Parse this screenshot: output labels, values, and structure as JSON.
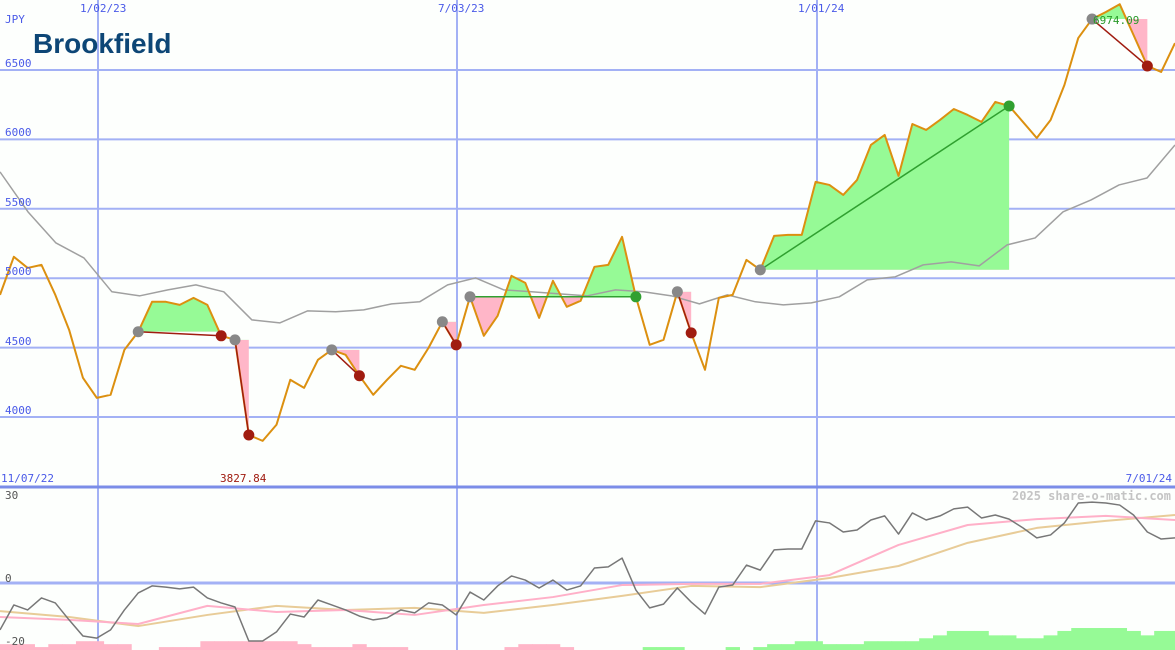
{
  "logo_text": "Brookfield",
  "currency_label": "JPY",
  "copyright": "2025 share-o-matic.com",
  "colors": {
    "grid": "#a3b1f5",
    "axis_text": "#4a5ae8",
    "price": "#dc9010",
    "avg": "#a0a0a0",
    "gain_fill": "#96fa96",
    "loss_fill": "#ffb6c8",
    "loss_marker": "#a01c10",
    "gain_marker": "#30a030",
    "entry_marker": "#888888",
    "osc": "#777777",
    "osc_fast": "#ffb0c8",
    "osc_slow": "#e8cc98"
  },
  "chart_data": [
    {
      "type": "line",
      "title": "",
      "ylabel": "JPY",
      "ylim": [
        3600,
        7000
      ],
      "yticks": [
        "6500",
        "6000",
        "5500",
        "5000",
        "4500",
        "4000"
      ],
      "ytick_values": [
        6500,
        6000,
        5500,
        5000,
        4500,
        4000
      ],
      "x_top_labels": [
        "1/02/23",
        "7/03/23",
        "1/01/24"
      ],
      "x_start_label": "11/07/22",
      "x_end_label": "7/01/24",
      "low_label": "3827.84",
      "high_label": "6974.09",
      "grid": true,
      "price": [
        4880,
        5154,
        5074,
        5096,
        4880,
        4628,
        4282,
        4138,
        4160,
        4484,
        4614,
        4830,
        4830,
        4808,
        4858,
        4808,
        4585,
        4556,
        3870,
        3828,
        3944,
        4268,
        4210,
        4412,
        4484,
        4448,
        4297,
        4160,
        4268,
        4369,
        4340,
        4498,
        4686,
        4520,
        4866,
        4585,
        4729,
        5017,
        4966,
        4714,
        4981,
        4794,
        4837,
        5082,
        5096,
        5298,
        4866,
        4520,
        4556,
        4902,
        4606,
        4340,
        4858,
        4880,
        5132,
        5060,
        5305,
        5312,
        5312,
        5694,
        5672,
        5600,
        5708,
        5960,
        6032,
        5737,
        6111,
        6068,
        6140,
        6219,
        6176,
        6126,
        6270,
        6241,
        6126,
        6010,
        6140,
        6392,
        6730,
        6867,
        6918,
        6974,
        6752,
        6529,
        6486,
        6694
      ],
      "average": [
        5766,
        5478,
        5254,
        5146,
        4902,
        4873,
        4916,
        4952,
        4902,
        4700,
        4678,
        4765,
        4758,
        4772,
        4815,
        4830,
        4952,
        5002,
        4916,
        4902,
        4887,
        4873,
        4916,
        4902,
        4873,
        4815,
        4880,
        4830,
        4808,
        4822,
        4866,
        4988,
        5010,
        5096,
        5118,
        5089,
        5240,
        5290,
        5478,
        5564,
        5672,
        5722,
        5960
      ],
      "trades": [
        {
          "entry": 10,
          "exit": 16,
          "result": "loss"
        },
        {
          "entry": 17,
          "exit": 18,
          "result": "loss"
        },
        {
          "entry": 24,
          "exit": 26,
          "result": "loss"
        },
        {
          "entry": 32,
          "exit": 33,
          "result": "loss"
        },
        {
          "entry": 34,
          "exit": 46,
          "result": "gain"
        },
        {
          "entry": 49,
          "exit": 50,
          "result": "loss"
        },
        {
          "entry": 55,
          "exit": 73,
          "result": "gain"
        },
        {
          "entry": 79,
          "exit": 83,
          "result": "loss"
        }
      ]
    },
    {
      "type": "line",
      "title": "",
      "ylim": [
        -23,
        32
      ],
      "yticks": [
        "30",
        "0",
        "-20"
      ],
      "ytick_values": [
        30,
        0,
        -20
      ],
      "oscillator": [
        -16.0,
        -7.5,
        -9.2,
        -5.1,
        -6.8,
        -12.6,
        -18.1,
        -18.8,
        -16.0,
        -9.2,
        -3.4,
        -1.0,
        -1.4,
        -2.0,
        -1.4,
        -5.1,
        -6.8,
        -8.2,
        -19.8,
        -19.8,
        -16.7,
        -10.6,
        -11.6,
        -5.8,
        -7.5,
        -9.2,
        -11.3,
        -12.6,
        -11.9,
        -9.2,
        -10.2,
        -6.8,
        -7.5,
        -10.9,
        -3.1,
        -5.8,
        -1.0,
        2.4,
        1.0,
        -1.7,
        1.0,
        -2.4,
        -1.0,
        5.1,
        5.5,
        8.5,
        -2.4,
        -8.5,
        -7.2,
        -1.7,
        -6.5,
        -10.6,
        -1.4,
        -0.7,
        6.1,
        4.4,
        11.3,
        11.6,
        11.6,
        21.2,
        20.5,
        17.4,
        18.1,
        21.5,
        22.9,
        16.7,
        23.9,
        21.5,
        22.9,
        25.3,
        25.9,
        22.2,
        23.2,
        21.8,
        18.8,
        15.4,
        16.4,
        20.5,
        27.3,
        27.6,
        27.3,
        26.6,
        23.2,
        17.4,
        15.0,
        15.4
      ],
      "fast_average": [
        -11.6,
        -12.6,
        -14.0,
        -7.8,
        -9.9,
        -9.2,
        -10.9,
        -7.5,
        -4.8,
        -0.7,
        -0.3,
        -0.3,
        2.7,
        13.0,
        19.8,
        21.8,
        22.9,
        21.5
      ],
      "slow_average": [
        -9.6,
        -11.6,
        -14.7,
        -10.9,
        -7.8,
        -9.2,
        -8.5,
        -10.2,
        -7.5,
        -4.4,
        -1.0,
        -1.4,
        1.7,
        5.8,
        13.7,
        18.8,
        21.2,
        23.2
      ],
      "histogram": [
        -2,
        -2,
        -2,
        -1,
        -2,
        -2,
        -3,
        -3,
        -2,
        -2,
        0,
        0,
        -1,
        -1,
        -1,
        -3,
        -3,
        -3,
        -3,
        -3,
        -3,
        -3,
        -2,
        -1,
        -1,
        -1,
        -2,
        -1,
        -1,
        -1,
        0,
        0,
        0,
        0,
        0,
        0,
        0,
        -1,
        -2,
        -2,
        -2,
        -1,
        0,
        0,
        0,
        0,
        0,
        1,
        1,
        1,
        0,
        0,
        0,
        1,
        0,
        1,
        2,
        2,
        3,
        3,
        2,
        2,
        2,
        3,
        3,
        3,
        3,
        4,
        5,
        6.5,
        6.5,
        6.5,
        5,
        5,
        4,
        4,
        5,
        6.5,
        7.5,
        7.5,
        7.5,
        7.5,
        6.5,
        5,
        6.5,
        6.5
      ]
    }
  ]
}
